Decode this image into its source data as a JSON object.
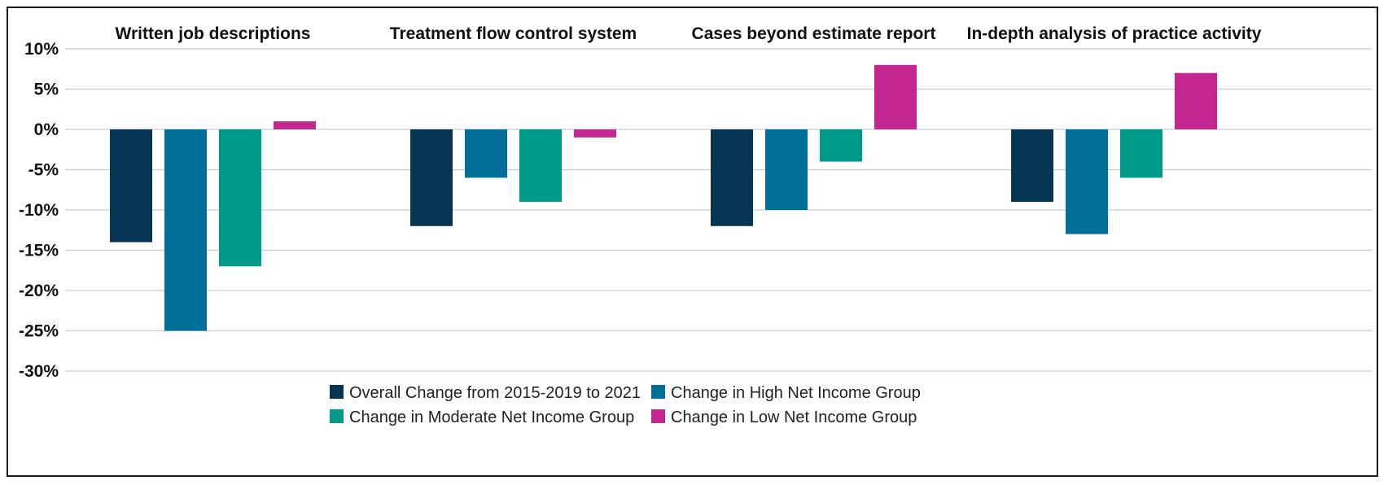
{
  "chart_data": {
    "type": "bar",
    "categories": [
      "Written job descriptions",
      "Treatment flow control system",
      "Cases beyond estimate report",
      "In-depth analysis of practice activity"
    ],
    "series": [
      {
        "name": "Overall Change from 2015-2019 to 2021",
        "color": "#063554",
        "values": [
          -14,
          -12,
          -12,
          -9
        ]
      },
      {
        "name": "Change in High Net Income Group",
        "color": "#006f9a",
        "values": [
          -25,
          -6,
          -10,
          -13
        ]
      },
      {
        "name": "Change in Moderate Net Income Group",
        "color": "#009a8a",
        "values": [
          -17,
          -9,
          -4,
          -6
        ]
      },
      {
        "name": "Change in Low Net Income Group",
        "color": "#c42690",
        "values": [
          1,
          -1,
          8,
          7
        ]
      }
    ],
    "ylim": [
      -30,
      10
    ],
    "yticks": [
      10,
      5,
      0,
      -5,
      -10,
      -15,
      -20,
      -25,
      -30
    ],
    "ytick_labels": [
      "10%",
      "5%",
      "0%",
      "-5%",
      "-10%",
      "-15%",
      "-20%",
      "-25%",
      "-30%"
    ],
    "grid": true,
    "legend_position": "bottom-center"
  }
}
